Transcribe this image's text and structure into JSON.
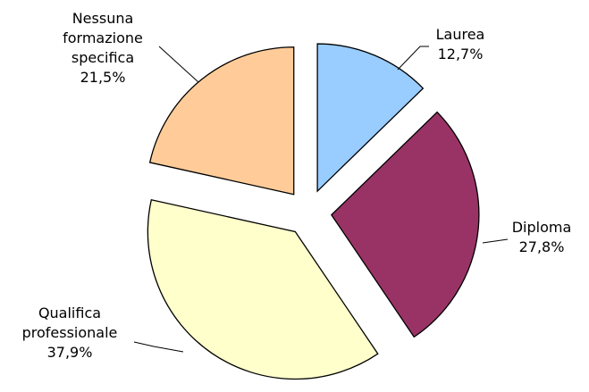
{
  "chart_data": {
    "type": "pie",
    "categories": [
      "Laurea",
      "Diploma",
      "Qualifica professionale",
      "Nessuna formazione specifica"
    ],
    "values": [
      12.7,
      27.8,
      37.9,
      21.5
    ],
    "value_labels": [
      "12,7%",
      "27,8%",
      "37,9%",
      "21,5%"
    ],
    "colors": [
      "#99ccff",
      "#993366",
      "#ffffcc",
      "#ffcc99"
    ],
    "exploded": true
  }
}
